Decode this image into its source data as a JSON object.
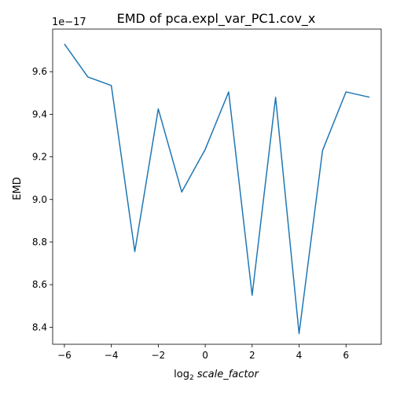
{
  "chart_data": {
    "type": "line",
    "title": "EMD of pca.expl_var_PC1.cov_x",
    "xlabel_prefix": "log",
    "xlabel_sub": "2",
    "xlabel_var": "scale_factor",
    "ylabel": "EMD",
    "y_offset_label": "1e−17",
    "xlim": [
      -6.5,
      7.5
    ],
    "ylim": [
      8.32,
      9.8
    ],
    "x_ticks": [
      -6,
      -4,
      -2,
      0,
      2,
      4,
      6
    ],
    "x_tick_labels": [
      "−6",
      "−4",
      "−2",
      "0",
      "2",
      "4",
      "6"
    ],
    "y_ticks": [
      8.4,
      8.6,
      8.8,
      9.0,
      9.2,
      9.4,
      9.6
    ],
    "y_tick_labels": [
      "8.4",
      "8.6",
      "8.8",
      "9.0",
      "9.2",
      "9.4",
      "9.6"
    ],
    "grid": false,
    "series": [
      {
        "color": "#1f77b4",
        "x": [
          -6,
          -5,
          -4,
          -3,
          -2,
          -1,
          0,
          1,
          2,
          3,
          4,
          5,
          6,
          7
        ],
        "y": [
          9.73,
          9.575,
          9.535,
          8.755,
          9.425,
          9.035,
          9.235,
          9.505,
          8.55,
          9.48,
          8.37,
          9.23,
          9.505,
          9.48
        ]
      }
    ]
  }
}
